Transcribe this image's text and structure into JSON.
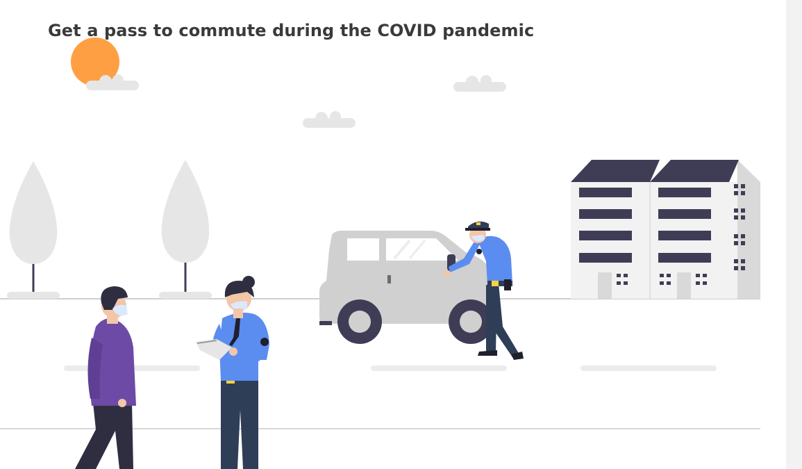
{
  "page": {
    "headline": "Get a pass to commute during the COVID pandemic"
  },
  "illustration": {
    "icon": "commute-pass-illustration",
    "colors": {
      "sun": "#ff9f43",
      "cloud": "#e6e6e6",
      "tree": "#e6e6e6",
      "trunk": "#3f3d56",
      "building_roof": "#3f3d56",
      "building_wall": "#f2f2f2",
      "building_shade": "#d9d9d9",
      "car_body": "#d0d0d0",
      "wheel": "#3f3d56",
      "uniform_blue": "#5b8df1",
      "trousers": "#2f3e57",
      "civilian_shirt": "#6c4aa6",
      "skin": "#f3c6a8",
      "hair": "#2f2e41",
      "mask": "#dbe9ff",
      "badge": "#f9d33a",
      "ground_line": "#cfcfcf"
    }
  }
}
